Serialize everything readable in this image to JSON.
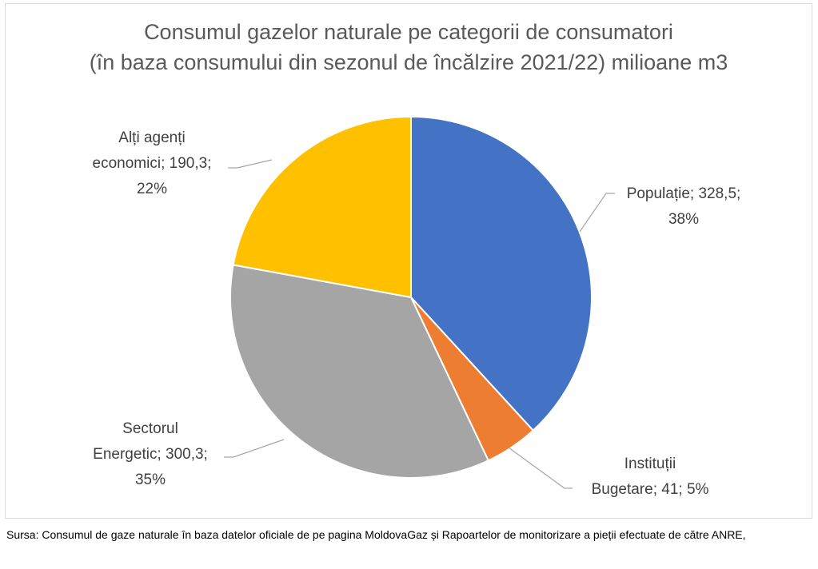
{
  "chart_data": {
    "type": "pie",
    "title": "Consumul gazelor naturale pe categorii de consumatori",
    "subtitle": "(în baza consumului din sezonul de încălzire 2021/22) milioane m3",
    "slices": [
      {
        "category": "Populație",
        "value": 328.5,
        "value_label": "328,5",
        "percent_label": "38%",
        "color": "#4472c4",
        "label_lines": [
          "Populație; 328,5;",
          "38%"
        ]
      },
      {
        "category": "Instituții Bugetare",
        "value": 41,
        "value_label": "41",
        "percent_label": "5%",
        "color": "#ed7d31",
        "label_lines": [
          "Instituții",
          "Bugetare; 41; 5%"
        ]
      },
      {
        "category": "Sectorul Energetic",
        "value": 300.3,
        "value_label": "300,3",
        "percent_label": "35%",
        "color": "#a5a5a5",
        "label_lines": [
          "Sectorul",
          "Energetic; 300,3;",
          "35%"
        ]
      },
      {
        "category": "Alți agenți economici",
        "value": 190.3,
        "value_label": "190,3",
        "percent_label": "22%",
        "color": "#ffc000",
        "label_lines": [
          "Alți agenți",
          "economici; 190,3;",
          "22%"
        ]
      }
    ]
  },
  "footer": {
    "source": "Sursa: Consumul de gaze naturale în baza datelor oficiale de pe pagina MoldovaGaz și Rapoartelor de monitorizare a pieții efectuate de către ANRE,"
  }
}
